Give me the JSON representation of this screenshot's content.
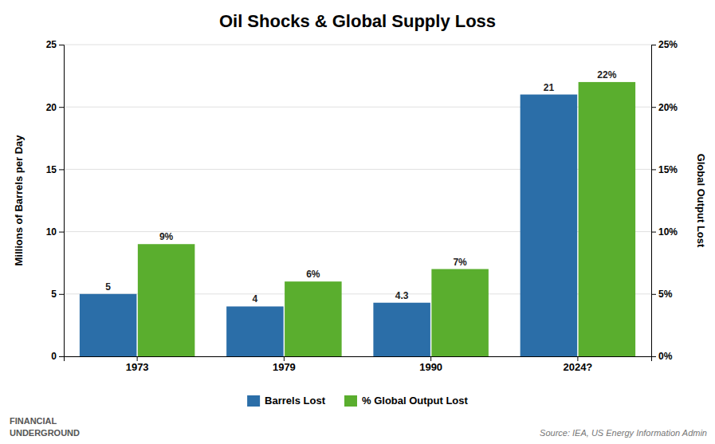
{
  "chart_data": {
    "type": "bar",
    "title": "Oil Shocks & Global Supply Loss",
    "categories": [
      "1973",
      "1979",
      "1990",
      "2024?"
    ],
    "series": [
      {
        "name": "Barrels Lost",
        "color": "#2B6EA8",
        "values": [
          5,
          4,
          4.3,
          21
        ]
      },
      {
        "name": "% Global Output Lost",
        "color": "#5AAE2E",
        "values": [
          9,
          6,
          7,
          22
        ],
        "value_labels": [
          "9%",
          "6%",
          "7%",
          "22%"
        ],
        "axis": "y2"
      }
    ],
    "ylabel": "Millions of Barrels per Day",
    "y2label": "Global Output Lost",
    "ylim": [
      0,
      25
    ],
    "yticks": [
      0,
      5,
      10,
      15,
      20,
      25
    ],
    "y2lim": [
      0,
      25
    ],
    "y2ticks": [
      {
        "value": 0,
        "label": "0%"
      },
      {
        "value": 5,
        "label": "5%"
      },
      {
        "value": 10,
        "label": "10%"
      },
      {
        "value": 15,
        "label": "15%"
      },
      {
        "value": 20,
        "label": "20%"
      },
      {
        "value": 25,
        "label": "25%"
      }
    ],
    "grid": true,
    "legend": "bottom",
    "data_labels": true,
    "annotations": [
      "Source: IEA, US Energy Information Admin",
      "FINANCIAL",
      "UNDERGROUND"
    ]
  }
}
